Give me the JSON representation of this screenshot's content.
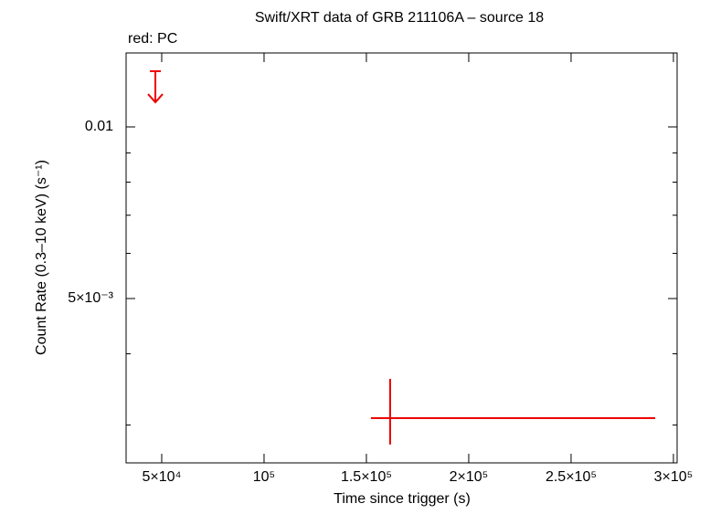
{
  "chart_data": {
    "type": "errorbar",
    "title": "Swift/XRT data of GRB 211106A – source 18",
    "annotation": "red: PC",
    "x_label": "Time since trigger (s)",
    "y_label": "Count Rate (0.3–10 keV) (s⁻¹)",
    "y_log": true,
    "color": "#ee0000",
    "xlim": [
      32600,
      301800
    ],
    "ylim": [
      0.002575,
      0.01348
    ],
    "xticks": [
      {
        "value": 50000,
        "label": "5×10⁴"
      },
      {
        "value": 100000,
        "label": "10⁵"
      },
      {
        "value": 150000,
        "label": "1.5×10⁵"
      },
      {
        "value": 200000,
        "label": "2×10⁵"
      },
      {
        "value": 250000,
        "label": "2.5×10⁵"
      },
      {
        "value": 300000,
        "label": "3×10⁵"
      }
    ],
    "yticks": [
      {
        "value": 0.005,
        "label": "5×10⁻³"
      },
      {
        "value": 0.01,
        "label": "0.01"
      }
    ],
    "yminorticks": [
      0.003,
      0.004,
      0.006,
      0.007,
      0.008,
      0.009
    ],
    "points": {
      "x": [
        161600
      ],
      "values": [
        0.003085
      ],
      "xerr_minus": [
        9400
      ],
      "xerr_plus": [
        129500
      ],
      "yerr_minus": [
        0.000312
      ],
      "yerr_plus": [
        0.000529
      ]
    },
    "upper_limits": {
      "x": [
        46900
      ],
      "values": [
        0.01252
      ]
    }
  }
}
